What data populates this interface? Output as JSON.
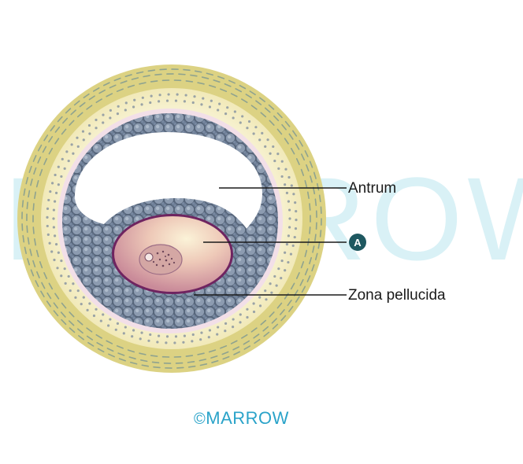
{
  "watermark": "MARROW",
  "labels": {
    "antrum": "Antrum",
    "oocyte_marker": "A",
    "zona_pellucida": "Zona pellucida"
  },
  "footer": {
    "copyright_symbol": "©",
    "brand": "MARROW"
  },
  "colors": {
    "theca_outer": "#d9cf7c",
    "theca_inner": "#f6f2cf",
    "granulosa": "#7f8fa3",
    "granulosa_dark": "#4f5d70",
    "antrum": "#ffffff",
    "oocyte_rim": "#6f2460",
    "oocyte_fill": "#e2b8b0",
    "marker": "#1e5860",
    "brand": "#2aa3c9"
  }
}
